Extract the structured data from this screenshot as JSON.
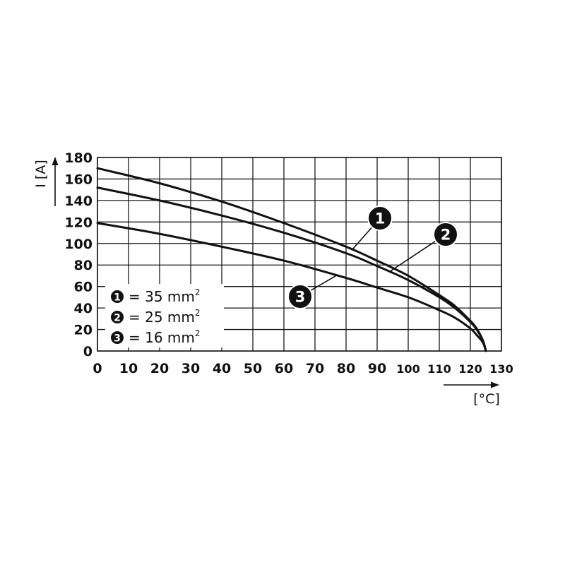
{
  "chart_data": {
    "type": "line",
    "title": "",
    "xlabel": "[°C]",
    "ylabel": "I [A]",
    "xlim": [
      0,
      130
    ],
    "ylim": [
      0,
      180
    ],
    "grid": true,
    "legend_position": "bottom-left",
    "x_ticks": [
      0,
      10,
      20,
      30,
      40,
      50,
      60,
      70,
      80,
      90,
      100,
      110,
      120,
      130
    ],
    "y_ticks": [
      0,
      20,
      40,
      60,
      80,
      100,
      120,
      140,
      160,
      180
    ],
    "series": [
      {
        "marker": "1",
        "name": "= 35 mm",
        "superscript": "2",
        "x": [
          0,
          20,
          40,
          60,
          80,
          90,
          100,
          110,
          115,
          120,
          122,
          124,
          125
        ],
        "y": [
          170,
          156,
          139,
          119,
          97,
          84,
          70,
          52,
          42,
          28,
          21,
          10,
          0
        ]
      },
      {
        "marker": "2",
        "name": "= 25 mm",
        "superscript": "2",
        "x": [
          0,
          20,
          40,
          60,
          80,
          90,
          100,
          110,
          115,
          120,
          122,
          124,
          125
        ],
        "y": [
          152,
          140,
          126,
          110,
          91,
          79,
          66,
          50,
          40,
          27,
          20,
          10,
          0
        ]
      },
      {
        "marker": "3",
        "name": "= 16 mm",
        "superscript": "2",
        "x": [
          0,
          20,
          40,
          60,
          80,
          90,
          100,
          110,
          115,
          120,
          122,
          124,
          125
        ],
        "y": [
          119,
          109,
          97,
          84,
          68,
          59,
          50,
          38,
          31,
          21,
          15,
          8,
          0
        ]
      }
    ],
    "callouts": [
      {
        "marker": "1",
        "series": 0,
        "at_x": 82
      },
      {
        "marker": "2",
        "series": 1,
        "at_x": 94
      },
      {
        "marker": "3",
        "series": 2,
        "at_x": 77
      }
    ]
  }
}
